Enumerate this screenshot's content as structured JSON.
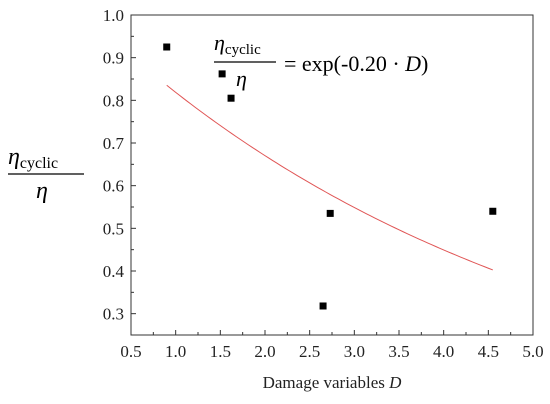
{
  "chart_data": {
    "type": "scatter",
    "xlabel_text": "Damage variables ",
    "xlabel_var": "D",
    "ylabel": {
      "numerator_symbol": "η",
      "numerator_subscript": "cyclic",
      "denominator_symbol": "η"
    },
    "xlim": [
      0.5,
      5.0
    ],
    "ylim": [
      0.25,
      1.0
    ],
    "x_ticks": [
      "0.5",
      "1.0",
      "1.5",
      "2.0",
      "2.5",
      "3.0",
      "3.5",
      "4.0",
      "4.5",
      "5.0"
    ],
    "y_ticks": [
      "0.3",
      "0.4",
      "0.5",
      "0.6",
      "0.7",
      "0.8",
      "0.9",
      "1.0"
    ],
    "points": [
      {
        "x": 0.9,
        "y": 0.925
      },
      {
        "x": 1.52,
        "y": 0.862
      },
      {
        "x": 1.62,
        "y": 0.805
      },
      {
        "x": 2.65,
        "y": 0.318
      },
      {
        "x": 2.73,
        "y": 0.535
      },
      {
        "x": 4.55,
        "y": 0.54
      }
    ],
    "fit": {
      "coefficient": -0.2,
      "x_range": [
        0.9,
        4.55
      ],
      "color": "#e05555"
    },
    "equation": {
      "lhs_numerator_symbol": "η",
      "lhs_numerator_subscript": "cyclic",
      "lhs_denominator_symbol": "η",
      "rhs_prefix": "= exp(-0.20 · ",
      "rhs_var": "D",
      "rhs_suffix": ")"
    },
    "marker_color": "#000000",
    "grid": false
  }
}
